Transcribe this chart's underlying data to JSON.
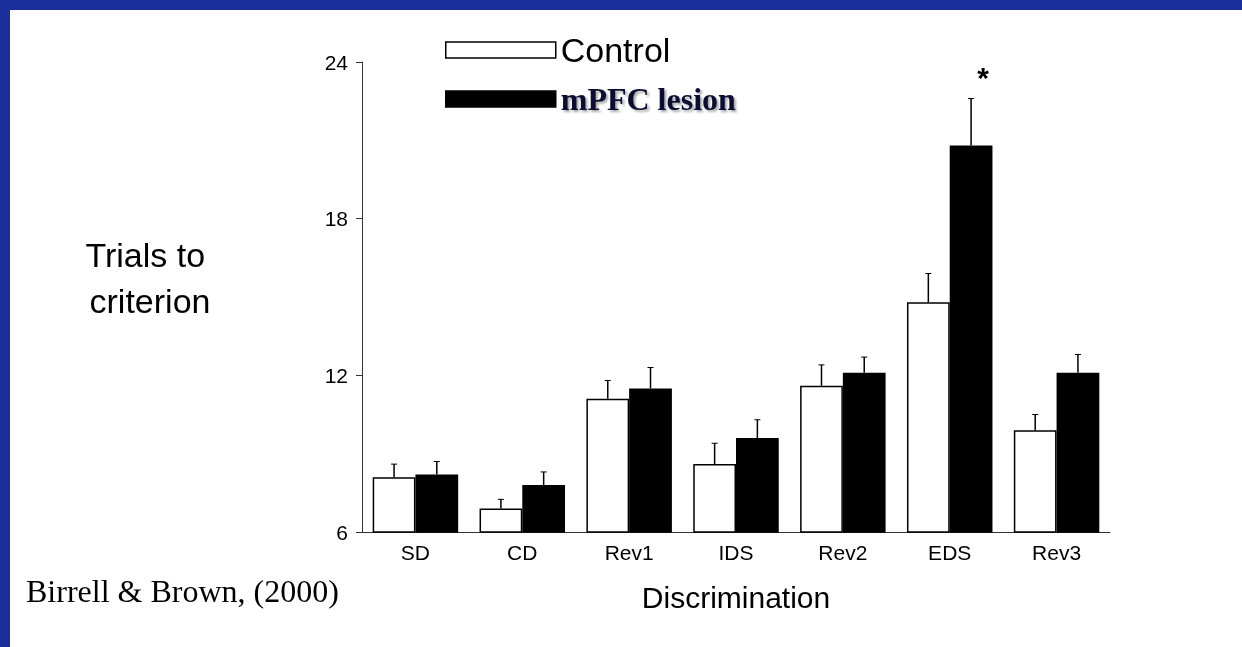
{
  "chart_data": {
    "type": "bar",
    "xlabel": "Discrimination",
    "ylabel": "Trials to criterion",
    "categories": [
      "SD",
      "CD",
      "Rev1",
      "IDS",
      "Rev2",
      "EDS",
      "Rev3"
    ],
    "series": [
      {
        "name": "Control",
        "color": "#ffffff",
        "values": [
          8.1,
          6.9,
          11.1,
          8.6,
          11.6,
          14.8,
          9.9
        ],
        "errors": [
          [
            8.1,
            8.6
          ],
          [
            6.9,
            7.25
          ],
          [
            11.1,
            11.8
          ],
          [
            8.6,
            9.4
          ],
          [
            11.6,
            12.4
          ],
          [
            14.8,
            15.9
          ],
          [
            9.9,
            10.5
          ]
        ]
      },
      {
        "name": "mPFC lesion",
        "color": "#000000",
        "values": [
          8.2,
          7.8,
          11.5,
          9.6,
          12.1,
          20.8,
          12.1
        ],
        "errors": [
          [
            8.2,
            8.7
          ],
          [
            7.8,
            8.3
          ],
          [
            11.5,
            12.3
          ],
          [
            9.6,
            10.3
          ],
          [
            12.1,
            12.7
          ],
          [
            20.8,
            22.6
          ],
          [
            12.1,
            12.8
          ]
        ]
      }
    ],
    "ylim": [
      6,
      24
    ],
    "yticks": [
      6,
      12,
      18,
      24
    ],
    "grid": false,
    "legend": "top",
    "annotations": [
      "*",
      "Birrell & Brown, (2000)"
    ]
  }
}
